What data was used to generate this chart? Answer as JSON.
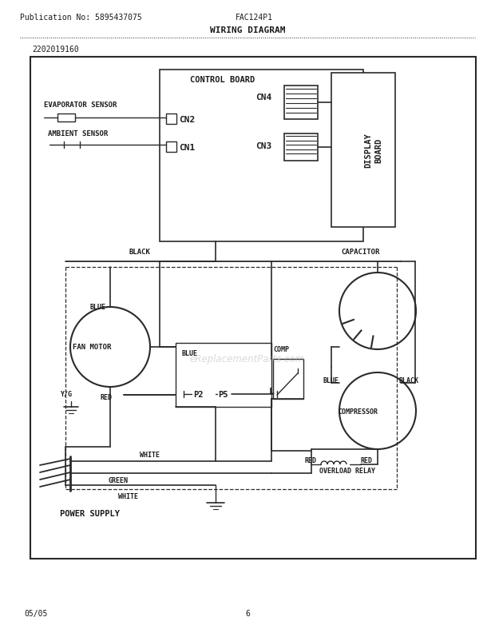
{
  "title": "WIRING DIAGRAM",
  "pub_no": "Publication No: 5895437075",
  "model": "FAC124P1",
  "part_no": "2202019160",
  "page": "6",
  "date": "05/05",
  "bg_color": "#ffffff",
  "line_color": "#2a2a2a",
  "text_color": "#1a1a1a",
  "watermark": "eReplacementParts.com"
}
